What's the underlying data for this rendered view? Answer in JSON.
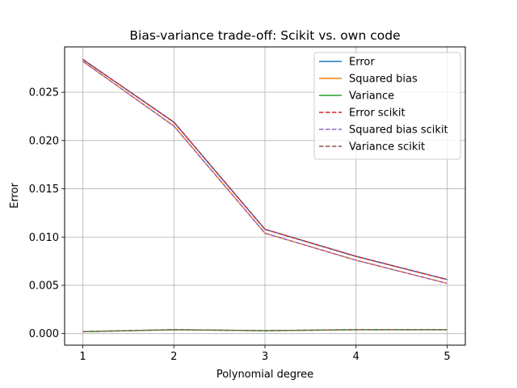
{
  "chart_data": {
    "type": "line",
    "title": "Bias-variance trade-off: Scikit vs. own code",
    "xlabel": "Polynomial degree",
    "ylabel": "Error",
    "x": [
      1,
      2,
      3,
      4,
      5
    ],
    "xlim": [
      0.8,
      5.2
    ],
    "ylim": [
      -0.0012,
      0.0297
    ],
    "xticks": [
      "1",
      "2",
      "3",
      "4",
      "5"
    ],
    "yticks": [
      "0.000",
      "0.005",
      "0.010",
      "0.015",
      "0.020",
      "0.025"
    ],
    "grid": true,
    "legend_position": "top-right",
    "series": [
      {
        "name": "Error",
        "values": [
          0.0284,
          0.0219,
          0.0108,
          0.008,
          0.0056
        ],
        "color": "#1f77b4",
        "dash": "solid"
      },
      {
        "name": "Squared bias",
        "values": [
          0.0282,
          0.0215,
          0.0104,
          0.0076,
          0.0052
        ],
        "color": "#ff7f0e",
        "dash": "solid"
      },
      {
        "name": "Variance",
        "values": [
          0.0002,
          0.0004,
          0.0003,
          0.0004,
          0.0004
        ],
        "color": "#2ca02c",
        "dash": "solid"
      },
      {
        "name": "Error scikit",
        "values": [
          0.0284,
          0.0219,
          0.0108,
          0.008,
          0.0056
        ],
        "color": "#d62728",
        "dash": "dashed"
      },
      {
        "name": "Squared bias scikit",
        "values": [
          0.0282,
          0.0215,
          0.0104,
          0.0076,
          0.0052
        ],
        "color": "#9467bd",
        "dash": "dashed"
      },
      {
        "name": "Variance scikit",
        "values": [
          0.0002,
          0.0004,
          0.0003,
          0.0004,
          0.0004
        ],
        "color": "#8c564b",
        "dash": "dashed"
      }
    ]
  }
}
